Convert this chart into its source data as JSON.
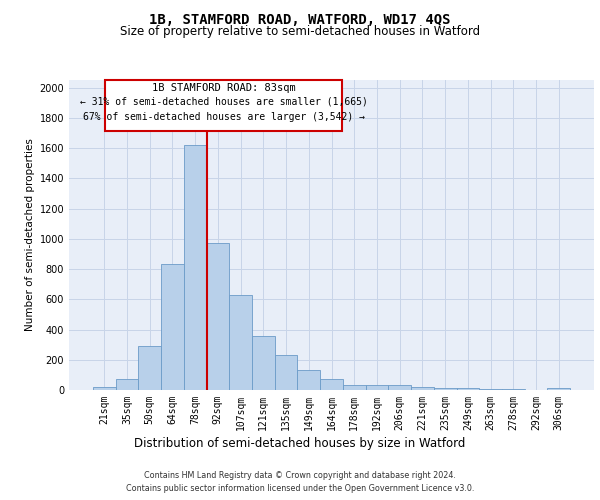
{
  "title": "1B, STAMFORD ROAD, WATFORD, WD17 4QS",
  "subtitle": "Size of property relative to semi-detached houses in Watford",
  "xlabel": "Distribution of semi-detached houses by size in Watford",
  "ylabel": "Number of semi-detached properties",
  "footnote1": "Contains HM Land Registry data © Crown copyright and database right 2024.",
  "footnote2": "Contains public sector information licensed under the Open Government Licence v3.0.",
  "categories": [
    "21sqm",
    "35sqm",
    "50sqm",
    "64sqm",
    "78sqm",
    "92sqm",
    "107sqm",
    "121sqm",
    "135sqm",
    "149sqm",
    "164sqm",
    "178sqm",
    "192sqm",
    "206sqm",
    "221sqm",
    "235sqm",
    "249sqm",
    "263sqm",
    "278sqm",
    "292sqm",
    "306sqm"
  ],
  "values": [
    20,
    70,
    290,
    830,
    1620,
    970,
    630,
    360,
    230,
    130,
    70,
    35,
    35,
    30,
    20,
    10,
    10,
    5,
    5,
    2,
    10
  ],
  "bar_color": "#b8d0ea",
  "bar_edge_color": "#6b9bc8",
  "vline_color": "#cc0000",
  "annotation_line1": "1B STAMFORD ROAD: 83sqm",
  "annotation_line2": "← 31% of semi-detached houses are smaller (1,665)",
  "annotation_line3": "67% of semi-detached houses are larger (3,542) →",
  "ylim": [
    0,
    2050
  ],
  "yticks": [
    0,
    200,
    400,
    600,
    800,
    1000,
    1200,
    1400,
    1600,
    1800,
    2000
  ],
  "grid_color": "#c8d4e8",
  "plot_bg": "#e8eef8",
  "vline_x": 4.5,
  "title_fontsize": 10,
  "subtitle_fontsize": 8.5,
  "ylabel_fontsize": 7.5,
  "xlabel_fontsize": 8.5,
  "tick_fontsize": 7,
  "annot_fontsize1": 7.5,
  "annot_fontsize2": 7.0,
  "footnote_fontsize": 5.8
}
